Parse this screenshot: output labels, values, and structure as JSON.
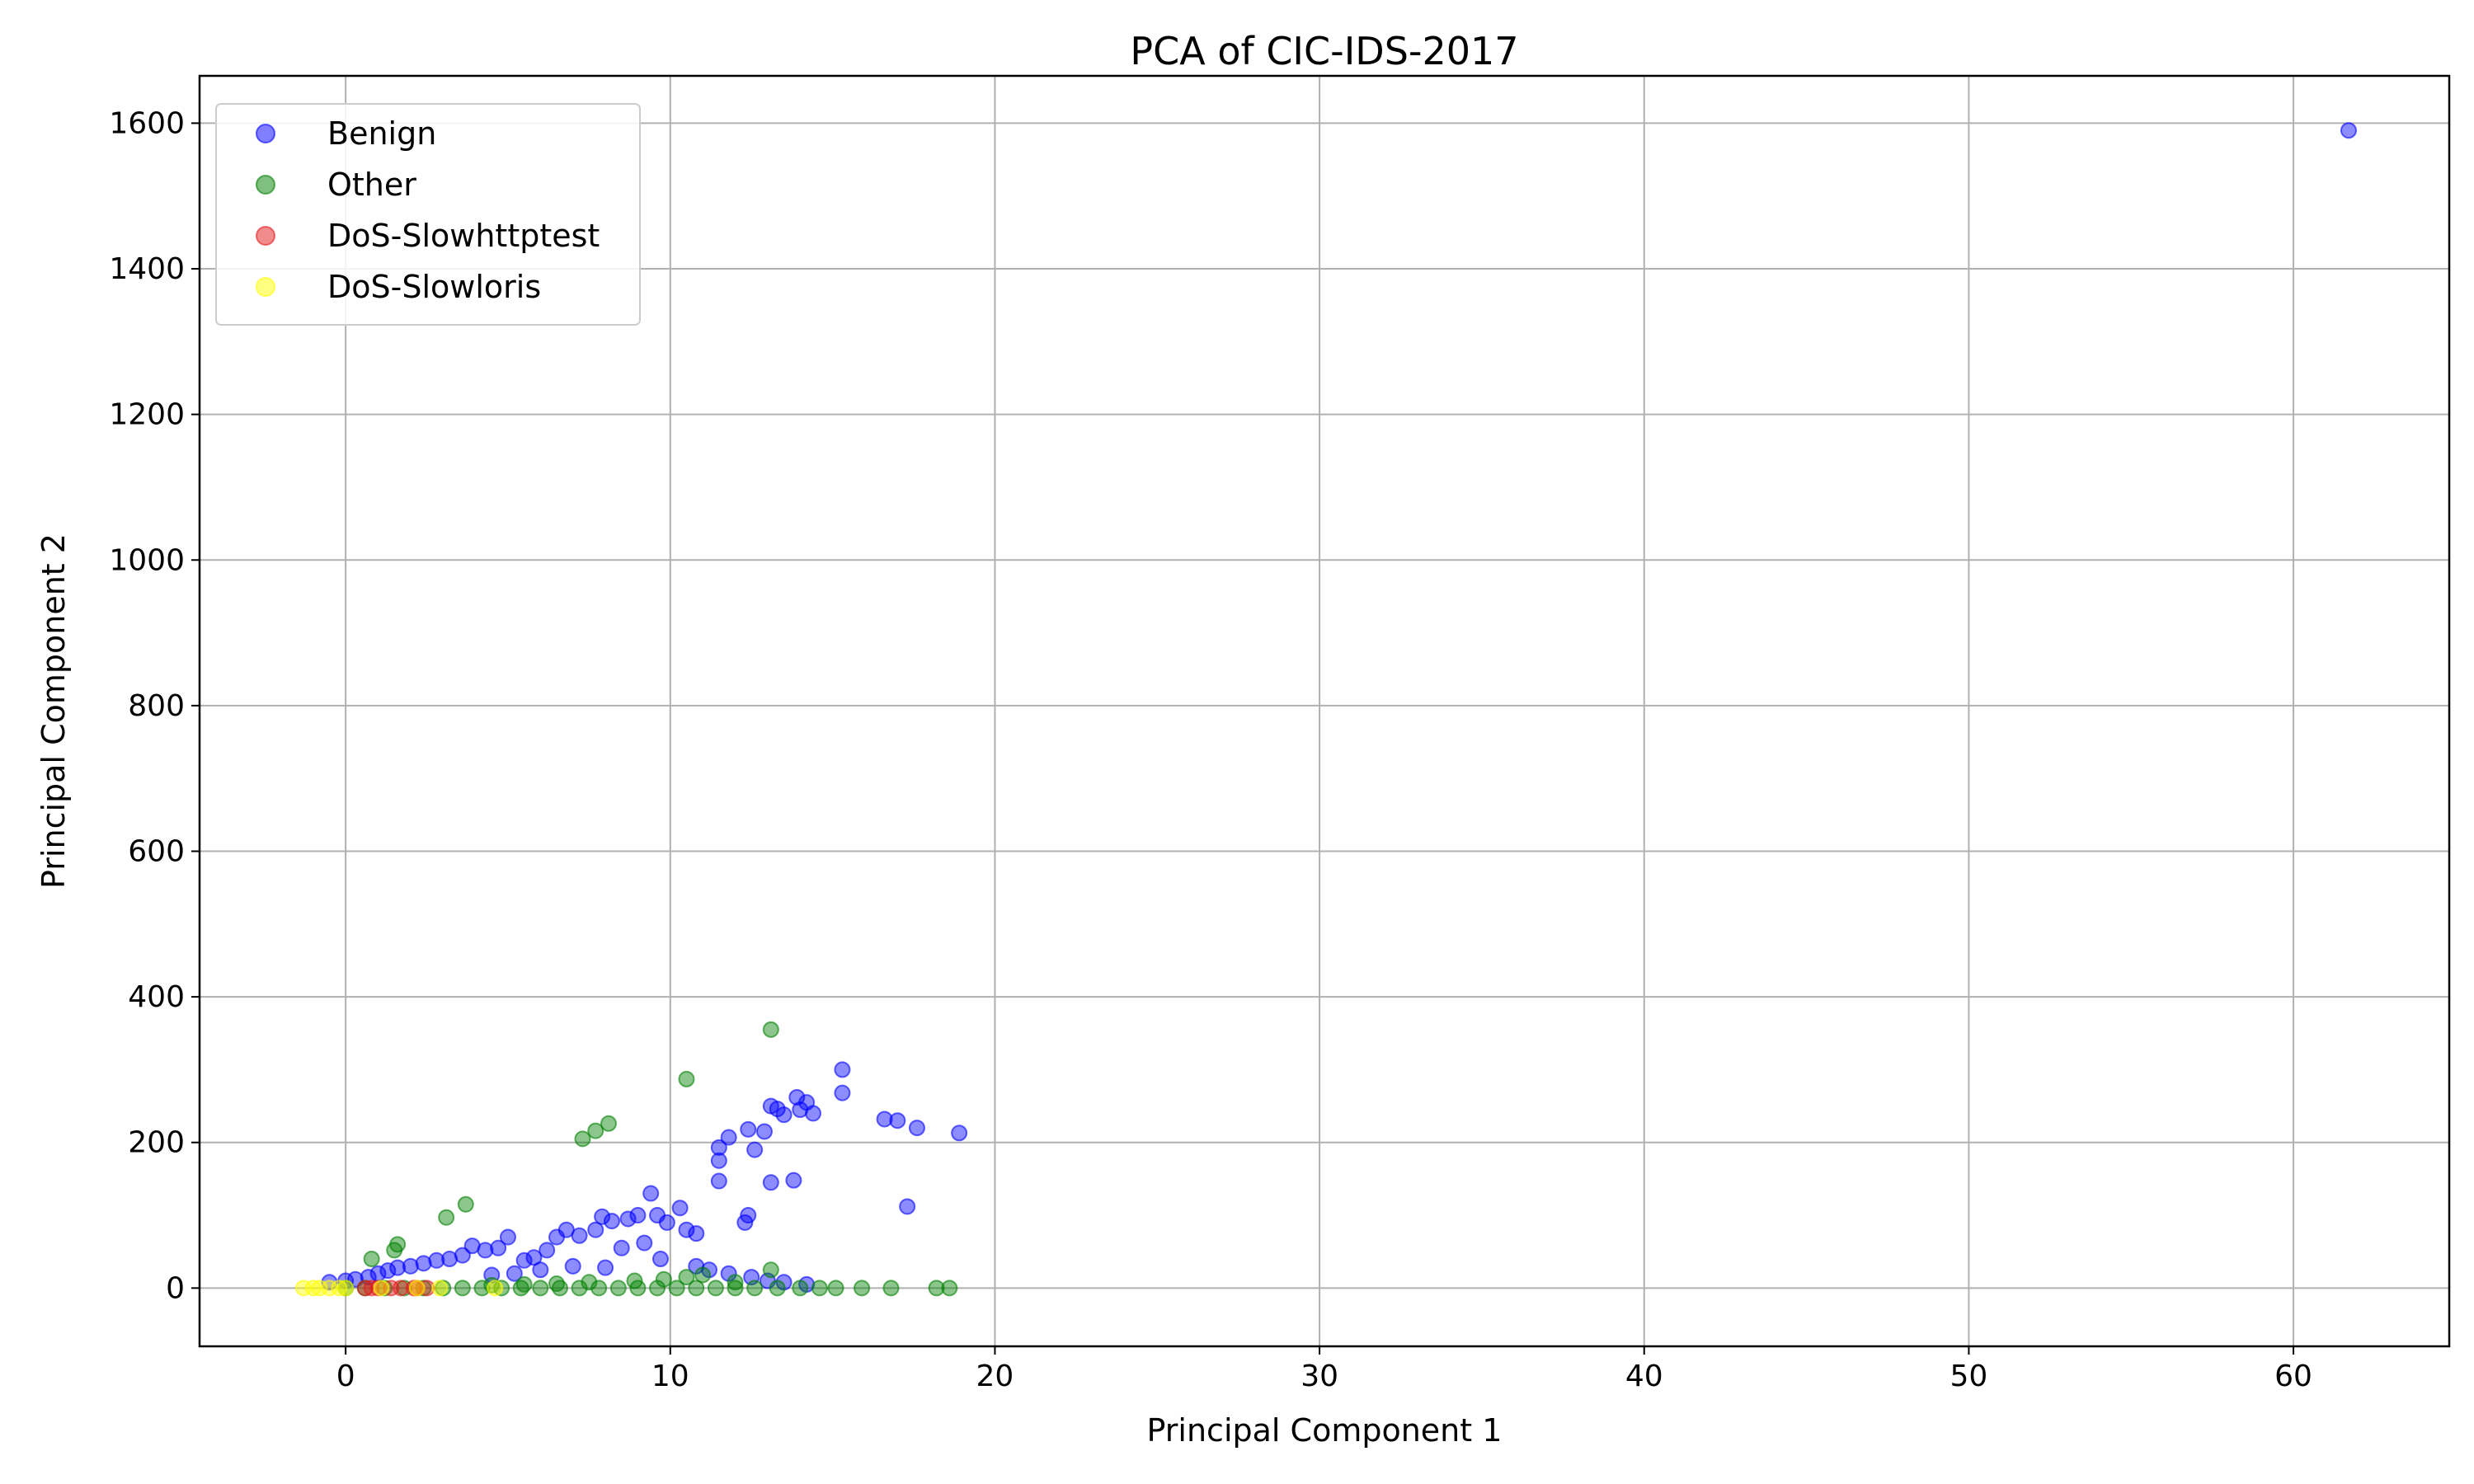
{
  "chart_data": {
    "type": "scatter",
    "title": "PCA of CIC-IDS-2017",
    "xlabel": "Principal Component 1",
    "ylabel": "Principal Component 2",
    "xlim": [
      -4.5,
      64.8
    ],
    "ylim": [
      -80,
      1665
    ],
    "xticks": [
      0,
      10,
      20,
      30,
      40,
      50,
      60
    ],
    "yticks": [
      0,
      200,
      400,
      600,
      800,
      1000,
      1200,
      1400,
      1600
    ],
    "grid": true,
    "legend_position": "upper-left",
    "series": [
      {
        "name": "Benign",
        "color": "#0000ff",
        "points": [
          [
            61.7,
            1590
          ],
          [
            15.3,
            300
          ],
          [
            15.3,
            268
          ],
          [
            13.1,
            250
          ],
          [
            13.3,
            246
          ],
          [
            13.9,
            262
          ],
          [
            14.2,
            255
          ],
          [
            14.4,
            240
          ],
          [
            14.0,
            245
          ],
          [
            13.5,
            238
          ],
          [
            12.9,
            215
          ],
          [
            12.4,
            218
          ],
          [
            11.8,
            207
          ],
          [
            11.5,
            193
          ],
          [
            11.5,
            175
          ],
          [
            11.5,
            147
          ],
          [
            12.6,
            190
          ],
          [
            13.1,
            145
          ],
          [
            13.8,
            148
          ],
          [
            16.6,
            232
          ],
          [
            17.0,
            230
          ],
          [
            17.6,
            220
          ],
          [
            18.9,
            213
          ],
          [
            17.3,
            112
          ],
          [
            12.3,
            90
          ],
          [
            12.4,
            100
          ],
          [
            10.5,
            80
          ],
          [
            10.8,
            75
          ],
          [
            10.3,
            110
          ],
          [
            9.9,
            90
          ],
          [
            9.4,
            130
          ],
          [
            9.6,
            100
          ],
          [
            9.0,
            100
          ],
          [
            8.7,
            95
          ],
          [
            8.2,
            92
          ],
          [
            7.9,
            98
          ],
          [
            7.7,
            80
          ],
          [
            7.2,
            72
          ],
          [
            6.8,
            80
          ],
          [
            6.5,
            70
          ],
          [
            6.2,
            52
          ],
          [
            5.8,
            42
          ],
          [
            5.5,
            38
          ],
          [
            5.0,
            70
          ],
          [
            4.7,
            55
          ],
          [
            4.3,
            52
          ],
          [
            3.9,
            58
          ],
          [
            3.6,
            45
          ],
          [
            3.2,
            40
          ],
          [
            2.8,
            38
          ],
          [
            2.4,
            34
          ],
          [
            2.0,
            30
          ],
          [
            1.6,
            28
          ],
          [
            1.3,
            24
          ],
          [
            1.0,
            20
          ],
          [
            0.7,
            15
          ],
          [
            0.3,
            12
          ],
          [
            0.0,
            10
          ],
          [
            -0.5,
            8
          ],
          [
            8.5,
            55
          ],
          [
            9.2,
            62
          ],
          [
            9.7,
            40
          ],
          [
            10.8,
            30
          ],
          [
            11.2,
            25
          ],
          [
            11.8,
            20
          ],
          [
            12.5,
            15
          ],
          [
            13.0,
            10
          ],
          [
            13.5,
            8
          ],
          [
            14.2,
            5
          ],
          [
            6.0,
            25
          ],
          [
            5.2,
            20
          ],
          [
            4.5,
            18
          ],
          [
            7.0,
            30
          ],
          [
            8.0,
            28
          ]
        ]
      },
      {
        "name": "Other",
        "color": "#008000",
        "points": [
          [
            13.1,
            355
          ],
          [
            10.5,
            287
          ],
          [
            8.1,
            226
          ],
          [
            7.7,
            216
          ],
          [
            7.3,
            205
          ],
          [
            3.7,
            115
          ],
          [
            3.1,
            97
          ],
          [
            1.6,
            60
          ],
          [
            1.5,
            52
          ],
          [
            0.8,
            40
          ],
          [
            13.1,
            25
          ],
          [
            18.6,
            0
          ],
          [
            18.2,
            0
          ],
          [
            16.8,
            0
          ],
          [
            15.9,
            0
          ],
          [
            15.1,
            0
          ],
          [
            14.6,
            0
          ],
          [
            14.0,
            0
          ],
          [
            13.3,
            0
          ],
          [
            12.6,
            0
          ],
          [
            12.0,
            0
          ],
          [
            11.4,
            0
          ],
          [
            10.8,
            0
          ],
          [
            10.2,
            0
          ],
          [
            9.6,
            0
          ],
          [
            9.0,
            0
          ],
          [
            8.4,
            0
          ],
          [
            7.8,
            0
          ],
          [
            7.2,
            0
          ],
          [
            6.6,
            0
          ],
          [
            6.0,
            0
          ],
          [
            5.4,
            0
          ],
          [
            4.8,
            0
          ],
          [
            4.2,
            0
          ],
          [
            3.6,
            0
          ],
          [
            3.0,
            0
          ],
          [
            2.4,
            0
          ],
          [
            1.8,
            0
          ],
          [
            1.2,
            0
          ],
          [
            0.6,
            0
          ],
          [
            0.0,
            0
          ],
          [
            10.5,
            15
          ],
          [
            9.8,
            12
          ],
          [
            8.9,
            10
          ],
          [
            11.0,
            18
          ],
          [
            12.0,
            8
          ],
          [
            7.5,
            8
          ],
          [
            6.5,
            6
          ],
          [
            5.5,
            5
          ],
          [
            4.5,
            4
          ]
        ]
      },
      {
        "name": "DoS-Slowhttptest",
        "color": "#e41a1c",
        "points": [
          [
            0.6,
            0
          ],
          [
            1.0,
            0
          ],
          [
            1.4,
            0
          ],
          [
            1.7,
            0
          ],
          [
            2.1,
            0
          ],
          [
            2.5,
            0
          ],
          [
            0.8,
            0
          ],
          [
            2.2,
            0
          ]
        ]
      },
      {
        "name": "DoS-Slowloris",
        "color": "#ffff00",
        "points": [
          [
            -1.3,
            0
          ],
          [
            -1.0,
            0
          ],
          [
            -0.8,
            0
          ],
          [
            -0.5,
            0
          ],
          [
            -0.2,
            0
          ],
          [
            0.0,
            0
          ],
          [
            1.1,
            0
          ],
          [
            2.2,
            0
          ],
          [
            2.9,
            0
          ],
          [
            4.6,
            0
          ]
        ]
      }
    ]
  }
}
